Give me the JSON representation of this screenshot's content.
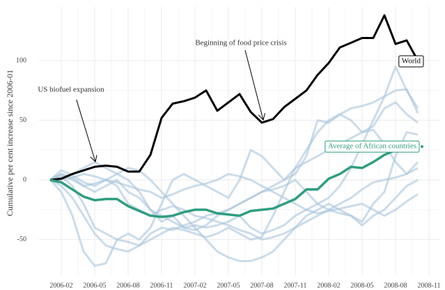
{
  "chart_data": {
    "type": "line",
    "y_label": "Cumulative per cent increase since 2006-01",
    "x": [
      "2006-01",
      "2006-02",
      "2006-03",
      "2006-04",
      "2006-05",
      "2006-06",
      "2006-07",
      "2006-08",
      "2006-09",
      "2006-10",
      "2006-11",
      "2006-12",
      "2007-01",
      "2007-02",
      "2007-03",
      "2007-04",
      "2007-05",
      "2007-06",
      "2007-07",
      "2007-08",
      "2007-09",
      "2007-10",
      "2007-11",
      "2007-12",
      "2008-01",
      "2008-02",
      "2008-03",
      "2008-04",
      "2008-05",
      "2008-06",
      "2008-07",
      "2008-08",
      "2008-09",
      "2008-10"
    ],
    "xlim": [
      "2005-12",
      "2008-12"
    ],
    "xticks": [
      "2006-02",
      "2006-05",
      "2006-08",
      "2006-11",
      "2007-02",
      "2007-05",
      "2007-08",
      "2007-11",
      "2008-02",
      "2008-05",
      "2008-08",
      "2008-11"
    ],
    "ylim": [
      -80,
      145
    ],
    "yticks": [
      -50,
      0,
      50,
      100
    ],
    "grid": true,
    "annotations": [
      "US biofuel expansion",
      "Beginning of food price crisis"
    ],
    "series": [
      {
        "color": "#a9c4dc",
        "values": [
          0,
          5,
          2,
          -5,
          -10,
          -5,
          0,
          -10,
          -15,
          -25,
          -35,
          -30,
          -40,
          -38,
          -40,
          -38,
          -35,
          -30,
          -40,
          -45,
          -42,
          -38,
          -30,
          -25,
          -20,
          -15,
          -5,
          10,
          30,
          50,
          70,
          95,
          75,
          60
        ]
      },
      {
        "color": "#a9c4dc",
        "values": [
          0,
          3,
          -5,
          -20,
          -40,
          -45,
          -50,
          -52,
          -55,
          -50,
          -45,
          -40,
          -42,
          -45,
          -48,
          -45,
          -40,
          -45,
          -50,
          -48,
          -30,
          -10,
          10,
          25,
          40,
          50,
          55,
          60,
          62,
          65,
          70,
          75,
          76,
          56
        ]
      },
      {
        "color": "#a9c4dc",
        "values": [
          0,
          -10,
          -30,
          -60,
          -72,
          -70,
          -50,
          -45,
          -50,
          -40,
          -20,
          0,
          5,
          0,
          -5,
          -10,
          -15,
          0,
          25,
          20,
          10,
          0,
          5,
          20,
          50,
          48,
          55,
          50,
          40,
          45,
          60,
          65,
          55,
          48
        ]
      },
      {
        "color": "#a9c4dc",
        "values": [
          0,
          5,
          0,
          -5,
          -3,
          0,
          5,
          10,
          8,
          0,
          -10,
          -20,
          -30,
          -40,
          -50,
          -60,
          -65,
          -68,
          -68,
          -65,
          -60,
          -50,
          -40,
          -30,
          -25,
          -20,
          -25,
          -30,
          -35,
          -20,
          -10,
          20,
          40,
          38
        ]
      },
      {
        "color": "#a9c4dc",
        "values": [
          0,
          2,
          5,
          10,
          15,
          10,
          5,
          0,
          -10,
          -25,
          -30,
          -35,
          -40,
          -42,
          -38,
          -30,
          -25,
          -20,
          -15,
          -10,
          -5,
          0,
          10,
          15,
          20,
          25,
          30,
          35,
          40,
          42,
          30,
          15,
          5,
          15
        ]
      },
      {
        "color": "#a9c4dc",
        "values": [
          0,
          -5,
          -15,
          -30,
          -45,
          -55,
          -58,
          -60,
          -55,
          -45,
          -40,
          -42,
          -38,
          -35,
          -30,
          -28,
          -25,
          -20,
          -15,
          -10,
          -8,
          -5,
          0,
          -10,
          -20,
          -25,
          -28,
          -30,
          -38,
          -30,
          -25,
          -15,
          -5,
          0
        ]
      },
      {
        "color": "#a9c4dc",
        "values": [
          0,
          0,
          2,
          5,
          3,
          0,
          -2,
          -5,
          -8,
          -10,
          -15,
          -12,
          -8,
          -5,
          -3,
          0,
          5,
          3,
          0,
          -5,
          -10,
          -15,
          -20,
          -25,
          -28,
          -26,
          -24,
          -22,
          -20,
          -25,
          -30,
          -25,
          -18,
          -12
        ]
      },
      {
        "color": "#a9c4dc",
        "values": [
          0,
          8,
          4,
          -2,
          -5,
          0,
          -5,
          -20,
          -25,
          -30,
          -25,
          -22,
          -25,
          -30,
          -32,
          -35,
          -38,
          -42,
          -45,
          -50,
          -48,
          -45,
          -40,
          -35,
          -30,
          -25,
          -20,
          -15,
          -8,
          -2,
          0,
          2,
          5,
          10
        ]
      },
      {
        "name": "World",
        "color": "#000000",
        "values": [
          0,
          1,
          5,
          8,
          11,
          12,
          11,
          7,
          7,
          21,
          52,
          64,
          66,
          69,
          75,
          58,
          65,
          72,
          57,
          48,
          51,
          61,
          68,
          75,
          88,
          98,
          111,
          115,
          119,
          119,
          138,
          114,
          117,
          100
        ]
      },
      {
        "name": "Average of African countries",
        "color": "#2e9e7f",
        "values": [
          0,
          -2,
          -8,
          -14,
          -17,
          -16,
          -16,
          -22,
          -26,
          -30,
          -31,
          -30,
          -27,
          -25,
          -25,
          -28,
          -29,
          -30,
          -26,
          -25,
          -24,
          -20,
          -16,
          -8,
          -8,
          1,
          5,
          11,
          10,
          15,
          21,
          25,
          28,
          28
        ]
      }
    ]
  }
}
